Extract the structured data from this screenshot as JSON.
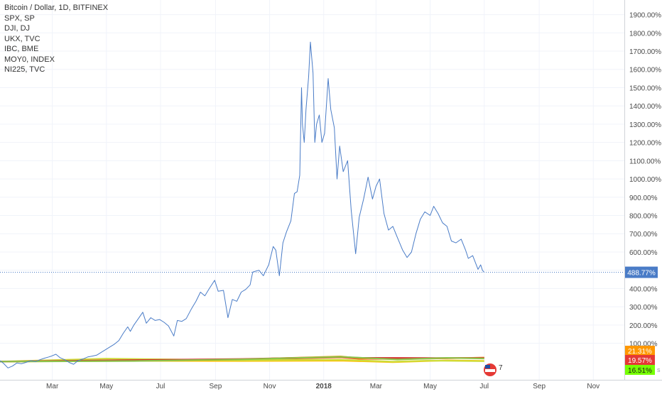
{
  "chart_data": {
    "type": "line",
    "y_unit": "%",
    "y_ticks": [
      "100.00%",
      "200.00%",
      "300.00%",
      "400.00%",
      "500.00%",
      "600.00%",
      "700.00%",
      "800.00%",
      "900.00%",
      "1000.00%",
      "1100.00%",
      "1200.00%",
      "1300.00%",
      "1400.00%",
      "1500.00%",
      "1600.00%",
      "1700.00%",
      "1800.00%",
      "1900.00%"
    ],
    "ylim": [
      -100,
      1980
    ],
    "x_ticks": [
      "Mar",
      "May",
      "Jul",
      "Sep",
      "Nov",
      "2018",
      "Mar",
      "May",
      "Jul",
      "Sep",
      "Nov"
    ],
    "x_tick_dates": [
      "2017-03-01",
      "2017-05-01",
      "2017-07-01",
      "2017-09-01",
      "2017-11-01",
      "2018-01-01",
      "2018-03-01",
      "2018-05-01",
      "2018-07-01",
      "2018-09-01",
      "2018-11-01"
    ],
    "xlim": [
      "2017-01-01",
      "2018-12-06"
    ],
    "grid": true,
    "legend": [
      "Bitcoin / Dollar, 1D, BITFINEX",
      "SPX, SP",
      "DJI, DJ",
      "UKX, TVC",
      "IBC, BME",
      "MOY0, INDEX",
      "NI225, TVC"
    ],
    "last_value": {
      "series": "Bitcoin / Dollar, 1D, BITFINEX",
      "label": "488.77%",
      "value": 488.77
    },
    "series": [
      {
        "name": "Bitcoin / Dollar, 1D, BITFINEX",
        "color": "#4a7cc7",
        "points": [
          [
            "2017-01-01",
            5
          ],
          [
            "2017-01-05",
            -10
          ],
          [
            "2017-01-10",
            -35
          ],
          [
            "2017-01-15",
            -25
          ],
          [
            "2017-01-20",
            -8
          ],
          [
            "2017-01-25",
            -12
          ],
          [
            "2017-01-30",
            -5
          ],
          [
            "2017-02-05",
            5
          ],
          [
            "2017-02-10",
            0
          ],
          [
            "2017-02-15",
            10
          ],
          [
            "2017-02-20",
            18
          ],
          [
            "2017-02-25",
            25
          ],
          [
            "2017-02-28",
            30
          ],
          [
            "2017-03-05",
            40
          ],
          [
            "2017-03-10",
            20
          ],
          [
            "2017-03-15",
            10
          ],
          [
            "2017-03-20",
            -5
          ],
          [
            "2017-03-25",
            -15
          ],
          [
            "2017-03-30",
            5
          ],
          [
            "2017-04-05",
            15
          ],
          [
            "2017-04-10",
            25
          ],
          [
            "2017-04-15",
            30
          ],
          [
            "2017-04-20",
            35
          ],
          [
            "2017-04-25",
            50
          ],
          [
            "2017-04-30",
            65
          ],
          [
            "2017-05-05",
            80
          ],
          [
            "2017-05-10",
            95
          ],
          [
            "2017-05-15",
            115
          ],
          [
            "2017-05-20",
            155
          ],
          [
            "2017-05-25",
            190
          ],
          [
            "2017-05-28",
            165
          ],
          [
            "2017-06-01",
            200
          ],
          [
            "2017-06-06",
            235
          ],
          [
            "2017-06-11",
            270
          ],
          [
            "2017-06-15",
            210
          ],
          [
            "2017-06-20",
            240
          ],
          [
            "2017-06-25",
            225
          ],
          [
            "2017-06-30",
            230
          ],
          [
            "2017-07-05",
            215
          ],
          [
            "2017-07-10",
            195
          ],
          [
            "2017-07-16",
            140
          ],
          [
            "2017-07-20",
            225
          ],
          [
            "2017-07-25",
            220
          ],
          [
            "2017-07-30",
            235
          ],
          [
            "2017-08-05",
            290
          ],
          [
            "2017-08-10",
            330
          ],
          [
            "2017-08-15",
            380
          ],
          [
            "2017-08-20",
            360
          ],
          [
            "2017-08-25",
            400
          ],
          [
            "2017-08-31",
            445
          ],
          [
            "2017-09-04",
            385
          ],
          [
            "2017-09-10",
            390
          ],
          [
            "2017-09-15",
            240
          ],
          [
            "2017-09-20",
            340
          ],
          [
            "2017-09-25",
            330
          ],
          [
            "2017-09-30",
            380
          ],
          [
            "2017-10-05",
            395
          ],
          [
            "2017-10-10",
            420
          ],
          [
            "2017-10-13",
            490
          ],
          [
            "2017-10-20",
            500
          ],
          [
            "2017-10-25",
            470
          ],
          [
            "2017-10-31",
            530
          ],
          [
            "2017-11-05",
            630
          ],
          [
            "2017-11-08",
            610
          ],
          [
            "2017-11-12",
            470
          ],
          [
            "2017-11-16",
            650
          ],
          [
            "2017-11-20",
            710
          ],
          [
            "2017-11-25",
            770
          ],
          [
            "2017-11-29",
            920
          ],
          [
            "2017-12-02",
            930
          ],
          [
            "2017-12-05",
            1020
          ],
          [
            "2017-12-07",
            1500
          ],
          [
            "2017-12-08",
            1300
          ],
          [
            "2017-12-10",
            1200
          ],
          [
            "2017-12-12",
            1380
          ],
          [
            "2017-12-15",
            1560
          ],
          [
            "2017-12-17",
            1750
          ],
          [
            "2017-12-20",
            1580
          ],
          [
            "2017-12-22",
            1200
          ],
          [
            "2017-12-24",
            1300
          ],
          [
            "2017-12-27",
            1350
          ],
          [
            "2017-12-30",
            1200
          ],
          [
            "2018-01-02",
            1250
          ],
          [
            "2018-01-06",
            1550
          ],
          [
            "2018-01-09",
            1380
          ],
          [
            "2018-01-13",
            1280
          ],
          [
            "2018-01-16",
            1000
          ],
          [
            "2018-01-19",
            1180
          ],
          [
            "2018-01-23",
            1040
          ],
          [
            "2018-01-28",
            1100
          ],
          [
            "2018-02-01",
            830
          ],
          [
            "2018-02-06",
            590
          ],
          [
            "2018-02-10",
            790
          ],
          [
            "2018-02-15",
            890
          ],
          [
            "2018-02-20",
            1010
          ],
          [
            "2018-02-25",
            890
          ],
          [
            "2018-03-01",
            960
          ],
          [
            "2018-03-05",
            1000
          ],
          [
            "2018-03-10",
            810
          ],
          [
            "2018-03-15",
            720
          ],
          [
            "2018-03-20",
            740
          ],
          [
            "2018-03-25",
            680
          ],
          [
            "2018-03-31",
            610
          ],
          [
            "2018-04-05",
            570
          ],
          [
            "2018-04-10",
            600
          ],
          [
            "2018-04-15",
            700
          ],
          [
            "2018-04-20",
            780
          ],
          [
            "2018-04-25",
            820
          ],
          [
            "2018-05-01",
            800
          ],
          [
            "2018-05-05",
            850
          ],
          [
            "2018-05-10",
            810
          ],
          [
            "2018-05-15",
            760
          ],
          [
            "2018-05-20",
            740
          ],
          [
            "2018-05-25",
            660
          ],
          [
            "2018-05-30",
            650
          ],
          [
            "2018-06-05",
            670
          ],
          [
            "2018-06-10",
            610
          ],
          [
            "2018-06-13",
            565
          ],
          [
            "2018-06-18",
            580
          ],
          [
            "2018-06-24",
            505
          ],
          [
            "2018-06-27",
            530
          ],
          [
            "2018-06-29",
            500
          ],
          [
            "2018-07-01",
            488.77
          ]
        ]
      },
      {
        "name": "SPX, SP",
        "color": "#ff5722",
        "points": [
          [
            "2017-01-01",
            0
          ],
          [
            "2017-06-01",
            6
          ],
          [
            "2017-10-01",
            10
          ],
          [
            "2018-01-20",
            23
          ],
          [
            "2018-02-10",
            15
          ],
          [
            "2018-04-01",
            14
          ],
          [
            "2018-07-01",
            21.31
          ]
        ]
      },
      {
        "name": "DJI, DJ",
        "color": "#ff9800",
        "points": [
          [
            "2017-01-01",
            0
          ],
          [
            "2017-06-01",
            7
          ],
          [
            "2017-10-01",
            12
          ],
          [
            "2018-01-20",
            28
          ],
          [
            "2018-02-10",
            18
          ],
          [
            "2018-04-01",
            16
          ],
          [
            "2018-07-01",
            21
          ]
        ]
      },
      {
        "name": "UKX, TVC",
        "color": "#ffc107",
        "points": [
          [
            "2017-01-01",
            0
          ],
          [
            "2017-06-01",
            4
          ],
          [
            "2017-10-01",
            3
          ],
          [
            "2018-01-20",
            5
          ],
          [
            "2018-03-20",
            -3
          ],
          [
            "2018-05-20",
            6
          ],
          [
            "2018-07-01",
            4
          ]
        ]
      },
      {
        "name": "IBC, BME",
        "color": "#cddc39",
        "points": [
          [
            "2017-01-01",
            0
          ],
          [
            "2017-05-01",
            16
          ],
          [
            "2017-10-01",
            7
          ],
          [
            "2018-01-20",
            10
          ],
          [
            "2018-03-20",
            -1
          ],
          [
            "2018-05-01",
            5
          ],
          [
            "2018-07-01",
            2
          ]
        ]
      },
      {
        "name": "MOY0, INDEX",
        "color": "#d32f2f",
        "points": [
          [
            "2017-01-01",
            0
          ],
          [
            "2017-06-01",
            8
          ],
          [
            "2017-10-01",
            14
          ],
          [
            "2018-01-20",
            25
          ],
          [
            "2018-02-10",
            20
          ],
          [
            "2018-05-01",
            19
          ],
          [
            "2018-07-01",
            19.57
          ]
        ]
      },
      {
        "name": "NI225, TVC",
        "color": "#8bc34a",
        "points": [
          [
            "2017-01-01",
            0
          ],
          [
            "2017-06-01",
            3
          ],
          [
            "2017-10-01",
            12
          ],
          [
            "2018-01-20",
            26
          ],
          [
            "2018-03-25",
            11
          ],
          [
            "2018-05-20",
            20
          ],
          [
            "2018-07-01",
            16.51
          ]
        ]
      }
    ],
    "scale_labels": [
      {
        "label": "21.31%",
        "color": "#ff9800"
      },
      {
        "label": "19.57%",
        "color": "#e53935"
      },
      {
        "label": "16.51%",
        "color": "#76ff03"
      }
    ]
  },
  "events_badge": {
    "count": "7"
  },
  "settings_symbol": "s"
}
